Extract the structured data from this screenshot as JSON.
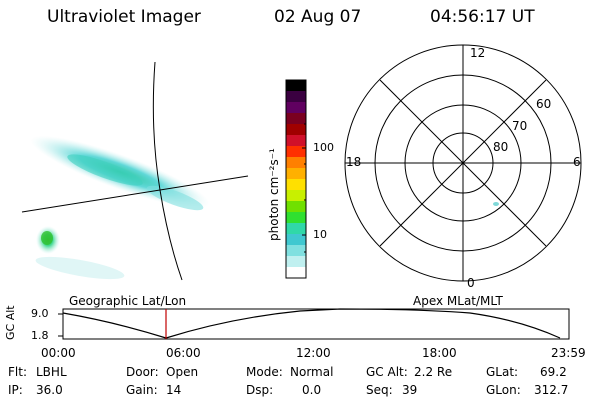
{
  "header": {
    "instrument": "Ultraviolet Imager",
    "date": "02 Aug 07",
    "time": "04:56:17 UT"
  },
  "map": {
    "caption": "Geographic Lat/Lon"
  },
  "colorbar": {
    "unit_label": "photon cm⁻²s⁻¹",
    "ticks": [
      "100",
      "10"
    ],
    "colors": [
      "#000000",
      "#3a0040",
      "#600060",
      "#7a0020",
      "#a00000",
      "#d0102a",
      "#ff3000",
      "#ff8000",
      "#ffb000",
      "#ffe000",
      "#c8f000",
      "#70e000",
      "#30e030",
      "#30d8a8",
      "#40c8d0",
      "#80e0e0",
      "#c0f0f0",
      "#ffffff"
    ]
  },
  "polar": {
    "caption": "Apex MLat/MLT",
    "mlt_labels": {
      "top": "12",
      "left": "18",
      "right": "6",
      "bottom": "0"
    },
    "lat_labels": [
      "60",
      "70",
      "80"
    ]
  },
  "timeline": {
    "axis_label": "GC Alt",
    "ylabels": [
      "9.0",
      "1.8"
    ],
    "xlabels": [
      "00:00",
      "06:00",
      "12:00",
      "18:00",
      "23:59"
    ],
    "cursor_time": "04:56",
    "cursor_color": "#c00000"
  },
  "footer": {
    "flt_label": "Flt:",
    "flt_value": "LBHL",
    "ip_label": "IP:",
    "ip_value": "36.0",
    "door_label": "Door:",
    "door_value": "Open",
    "gain_label": "Gain:",
    "gain_value": "14",
    "mode_label": "Mode:",
    "mode_value": "Normal",
    "dsp_label": "Dsp:",
    "dsp_value": "0.0",
    "gcalt_label": "GC Alt:",
    "gcalt_value": "2.2 Re",
    "seq_label": "Seq:",
    "seq_value": "39",
    "glat_label": "GLat:",
    "glat_value": "69.2",
    "glon_label": "GLon:",
    "glon_value": "312.7"
  }
}
